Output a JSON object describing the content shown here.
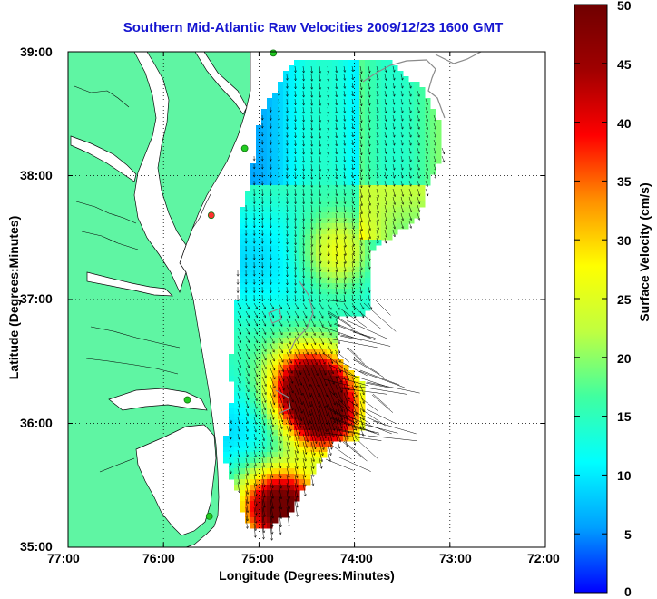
{
  "title": "Southern Mid-Atlantic Raw Velocities 2009/12/23 1600 GMT",
  "x_axis": {
    "label": "Longitude (Degrees:Minutes)",
    "ticks": [
      "77:00",
      "76:00",
      "75:00",
      "74:00",
      "73:00",
      "72:00"
    ]
  },
  "y_axis": {
    "label": "Latitude (Degrees:Minutes)",
    "ticks": [
      "39:00",
      "38:00",
      "37:00",
      "36:00",
      "35:00"
    ]
  },
  "colorbar": {
    "label": "Surface Velocity (cm/s)",
    "ticks": [
      "50",
      "45",
      "40",
      "35",
      "30",
      "25",
      "20",
      "15",
      "10",
      "5",
      "0"
    ],
    "min": 0,
    "max": 50,
    "colormap": [
      "#0000ff",
      "#00a0ff",
      "#00ffff",
      "#40ffa0",
      "#c0ff40",
      "#ffff00",
      "#ff9000",
      "#ff0000",
      "#a00000",
      "#700000"
    ]
  },
  "colors": {
    "land": "#5ff5a3",
    "ocean": "#ffffff",
    "frame": "#000000",
    "arrows": "#000000",
    "stations": "#22cc22",
    "title": "#1515d0"
  },
  "map_data": {
    "lon_range": [
      -77,
      -72
    ],
    "lat_range": [
      35,
      39
    ],
    "grid": true,
    "stations": [
      {
        "lon": -74.85,
        "lat": 38.99,
        "color": "#22cc22"
      },
      {
        "lon": -75.15,
        "lat": 38.22,
        "color": "#22cc22"
      },
      {
        "lon": -75.5,
        "lat": 37.68,
        "color": "#ff3030"
      },
      {
        "lon": -75.75,
        "lat": 36.19,
        "color": "#22cc22"
      },
      {
        "lon": -75.52,
        "lat": 35.25,
        "color": "#22cc22"
      }
    ],
    "velocity_field": {
      "cell_deg": 0.04,
      "hotspots": [
        {
          "lon": -74.5,
          "lat": 36.3,
          "value": 50
        },
        {
          "lon": -74.8,
          "lat": 35.35,
          "value": 48
        },
        {
          "lon": -74.3,
          "lat": 36.05,
          "value": 40
        },
        {
          "lon": -74.2,
          "lat": 37.4,
          "value": 25
        }
      ]
    }
  }
}
